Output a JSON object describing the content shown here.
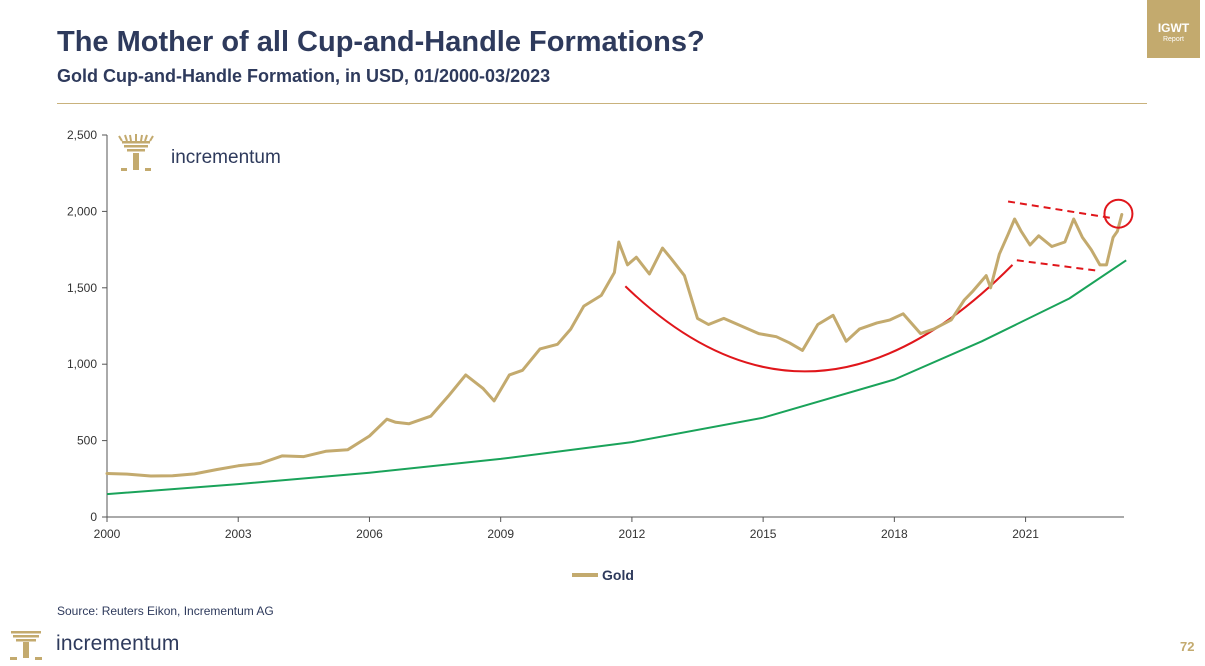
{
  "badge": {
    "main": "IGWT",
    "sub": "Report"
  },
  "header": {
    "title": "The Mother of all Cup-and-Handle Formations?",
    "subtitle": "Gold Cup-and-Handle Formation, in USD, 01/2000-03/2023"
  },
  "chart_logo_text": "incrementum",
  "footer": {
    "source": "Source: Reuters Eikon, Incrementum AG",
    "brand": "incrementum",
    "page_number": "72"
  },
  "colors": {
    "title": "#2e3a5c",
    "gold": "#c3aa6e",
    "trend": "#1aa35a",
    "annotation": "#e0161b",
    "axis": "#333333"
  },
  "chart_data": {
    "type": "line",
    "title": "",
    "xlabel": "",
    "ylabel": "",
    "xlim": [
      2000,
      2023.25
    ],
    "ylim": [
      0,
      2500
    ],
    "x_ticks": [
      2000,
      2003,
      2006,
      2009,
      2012,
      2015,
      2018,
      2021
    ],
    "x_tick_labels": [
      "2000",
      "2003",
      "2006",
      "2009",
      "2012",
      "2015",
      "2018",
      "2021"
    ],
    "y_ticks": [
      0,
      500,
      1000,
      1500,
      2000,
      2500
    ],
    "y_tick_labels": [
      "0",
      "500",
      "1,000",
      "1,500",
      "2,000",
      "2,500"
    ],
    "legend": {
      "position": "bottom-center",
      "entries": [
        "Gold"
      ]
    },
    "series": [
      {
        "name": "Gold",
        "x": [
          2000,
          2000.5,
          2001,
          2001.5,
          2002,
          2002.5,
          2003,
          2003.5,
          2004,
          2004.5,
          2005,
          2005.5,
          2006,
          2006.4,
          2006.6,
          2006.9,
          2007.4,
          2007.8,
          2008.2,
          2008.6,
          2008.85,
          2009.2,
          2009.5,
          2009.9,
          2010.3,
          2010.6,
          2010.9,
          2011.3,
          2011.6,
          2011.7,
          2011.9,
          2012.1,
          2012.4,
          2012.7,
          2012.9,
          2013.2,
          2013.5,
          2013.75,
          2014.1,
          2014.5,
          2014.9,
          2015.3,
          2015.6,
          2015.9,
          2016.25,
          2016.6,
          2016.9,
          2017.2,
          2017.6,
          2017.9,
          2018.2,
          2018.6,
          2018.9,
          2019.3,
          2019.6,
          2019.8,
          2020.1,
          2020.2,
          2020.4,
          2020.6,
          2020.75,
          2020.9,
          2021.1,
          2021.3,
          2021.6,
          2021.9,
          2022.1,
          2022.3,
          2022.5,
          2022.7,
          2022.85,
          2023.0,
          2023.1,
          2023.2
        ],
        "values": [
          285,
          280,
          268,
          270,
          282,
          310,
          335,
          350,
          400,
          395,
          430,
          440,
          530,
          640,
          620,
          610,
          660,
          790,
          930,
          840,
          760,
          930,
          960,
          1100,
          1130,
          1230,
          1380,
          1450,
          1600,
          1800,
          1650,
          1700,
          1590,
          1760,
          1690,
          1580,
          1300,
          1260,
          1300,
          1250,
          1200,
          1180,
          1140,
          1090,
          1260,
          1320,
          1150,
          1230,
          1270,
          1290,
          1330,
          1200,
          1230,
          1290,
          1420,
          1480,
          1580,
          1500,
          1720,
          1850,
          1950,
          1870,
          1780,
          1840,
          1770,
          1800,
          1950,
          1830,
          1750,
          1650,
          1650,
          1830,
          1870,
          1980
        ]
      },
      {
        "name": "Long-term trend",
        "x": [
          2000,
          2003,
          2006,
          2009,
          2012,
          2015,
          2018,
          2020,
          2022,
          2023.3
        ],
        "values": [
          150,
          215,
          290,
          380,
          490,
          650,
          900,
          1150,
          1430,
          1680
        ]
      }
    ],
    "annotations": [
      {
        "type": "cup-arc",
        "x": [
          2011.85,
          2016.2,
          2020.7
        ],
        "values": [
          1510,
          955,
          1650
        ]
      },
      {
        "type": "handle-upper-line",
        "x": [
          2020.6,
          2023.0
        ],
        "values": [
          2065,
          1955
        ]
      },
      {
        "type": "handle-lower-line",
        "x": [
          2020.8,
          2022.7
        ],
        "values": [
          1680,
          1610
        ]
      },
      {
        "type": "breakout-circle",
        "x": 2023.1,
        "value": 1985
      }
    ]
  }
}
